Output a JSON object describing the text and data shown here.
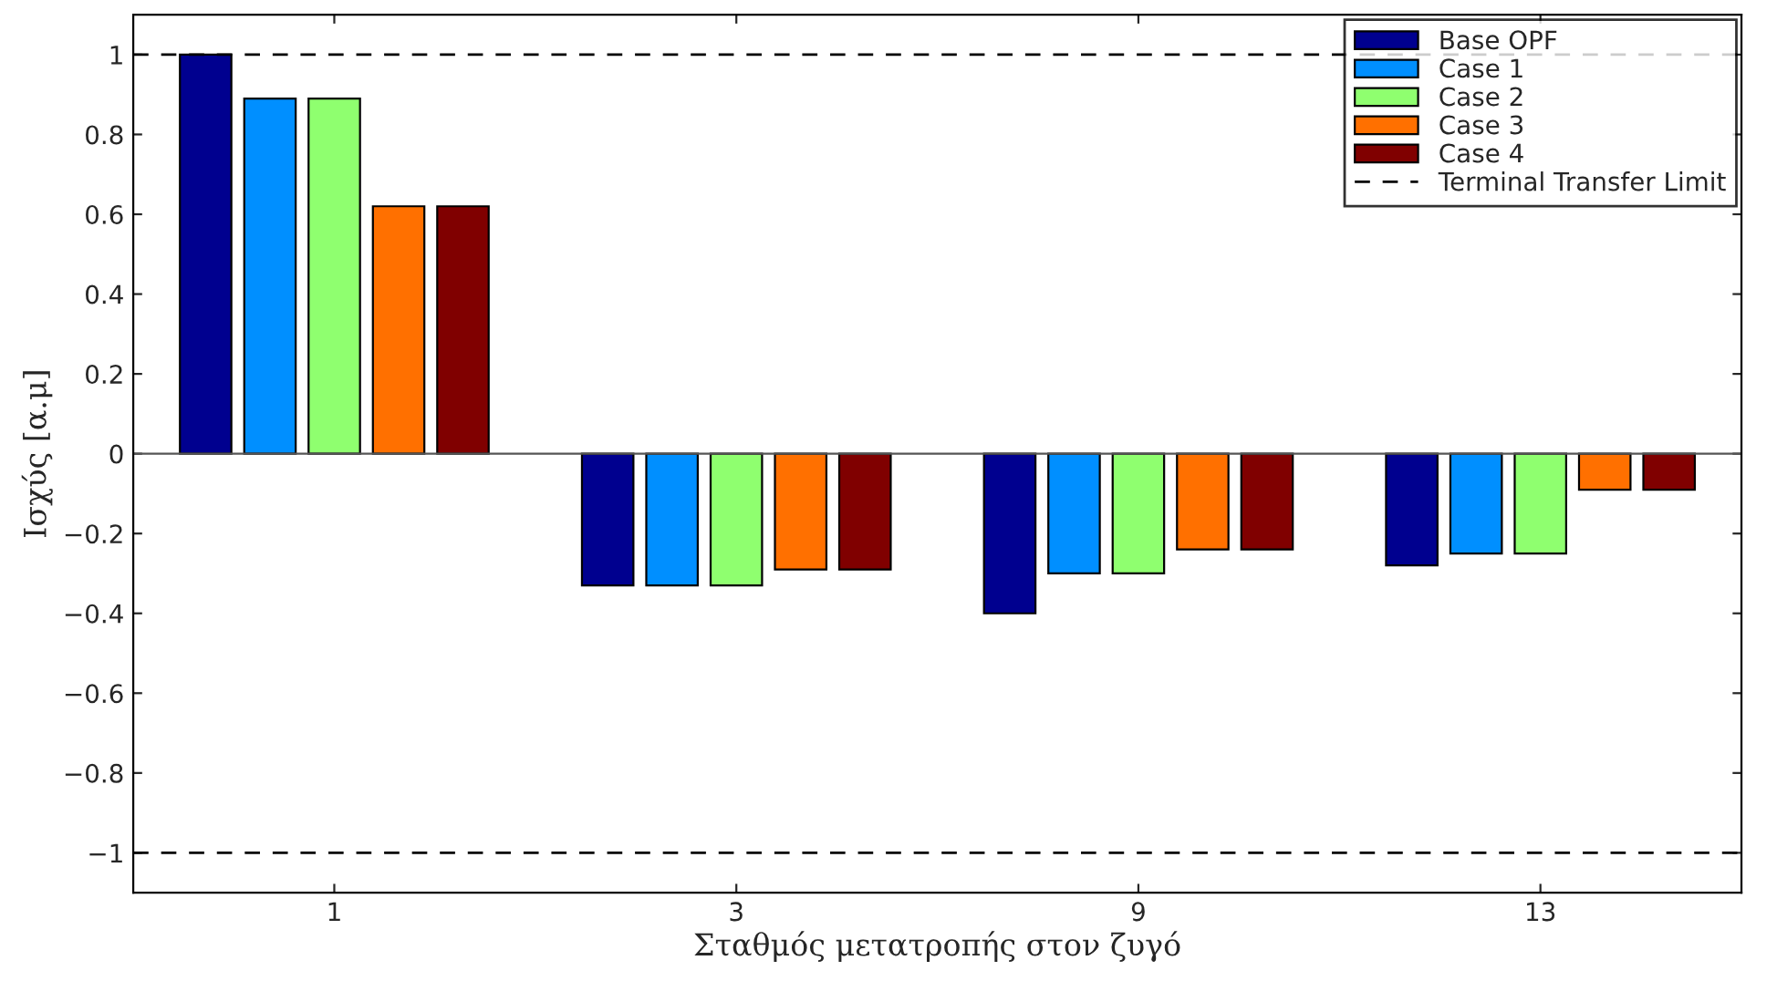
{
  "chart_data": {
    "type": "bar",
    "xlabel": "Σταθμός μετατροπής στον ζυγό",
    "ylabel": "Ισχύς [α.μ]",
    "categories": [
      "1",
      "3",
      "9",
      "13"
    ],
    "series": [
      {
        "name": "Base OPF",
        "color": "#00008f",
        "values": [
          1.0,
          -0.33,
          -0.4,
          -0.28
        ]
      },
      {
        "name": "Case 1",
        "color": "#008fff",
        "values": [
          0.89,
          -0.33,
          -0.3,
          -0.25
        ]
      },
      {
        "name": "Case 2",
        "color": "#8fff6f",
        "values": [
          0.89,
          -0.33,
          -0.3,
          -0.25
        ]
      },
      {
        "name": "Case 3",
        "color": "#ff7000",
        "values": [
          0.62,
          -0.29,
          -0.24,
          -0.09
        ]
      },
      {
        "name": "Case 4",
        "color": "#800000",
        "values": [
          0.62,
          -0.29,
          -0.24,
          -0.09
        ]
      }
    ],
    "ref_lines": [
      {
        "axis": "y",
        "value": 1,
        "label": "Terminal Transfer Limit",
        "color": "#000000",
        "line_style": "dashed"
      },
      {
        "axis": "y",
        "value": -1,
        "label": null,
        "color": "#000000",
        "line_style": "dashed"
      }
    ],
    "ylim": [
      -1.1,
      1.1
    ],
    "yticks": [
      {
        "value": -1,
        "label": "−1"
      },
      {
        "value": -0.8,
        "label": "−0.8"
      },
      {
        "value": -0.6,
        "label": "−0.6"
      },
      {
        "value": -0.4,
        "label": "−0.4"
      },
      {
        "value": -0.2,
        "label": "−0.2"
      },
      0,
      0.2,
      0.4,
      0.6,
      0.8,
      1
    ],
    "grid": false,
    "legend": "top right"
  }
}
